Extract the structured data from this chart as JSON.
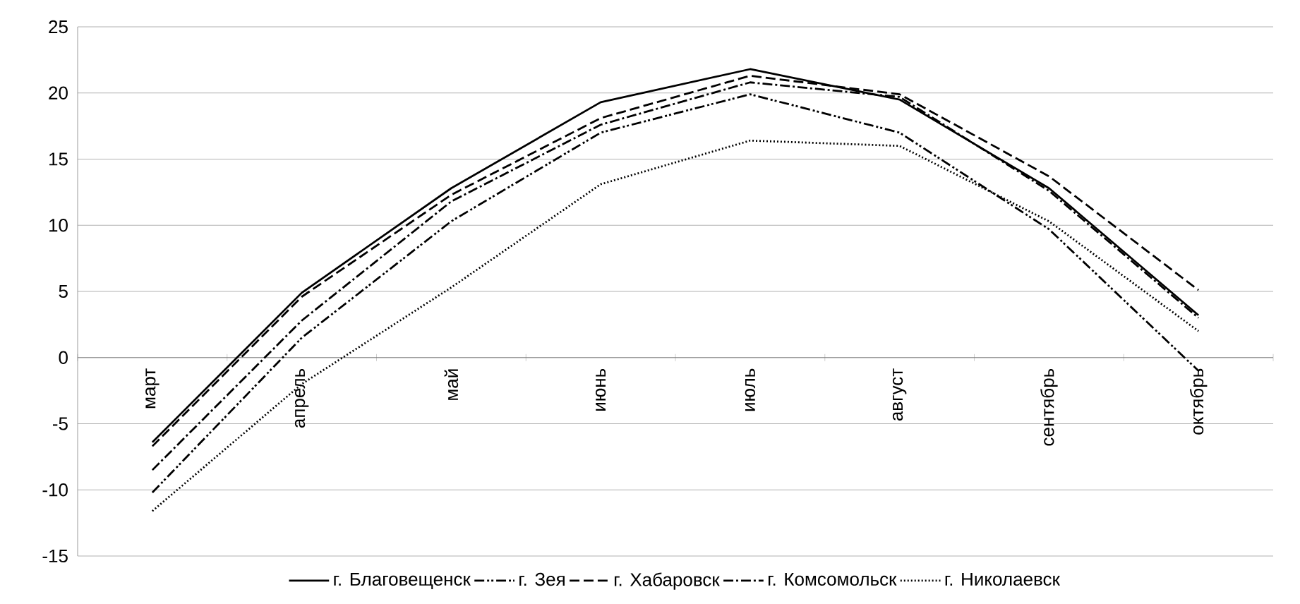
{
  "chart_data": {
    "type": "line",
    "categories": [
      "март",
      "апрель",
      "май",
      "июнь",
      "июль",
      "август",
      "сентябрь",
      "октябрь"
    ],
    "series": [
      {
        "name": "г. Благовещенск",
        "color": "#000000",
        "line_style": "solid",
        "values": [
          -6.4,
          4.9,
          12.8,
          19.3,
          21.8,
          19.5,
          12.8,
          3.2
        ]
      },
      {
        "name": "г. Зея",
        "color": "#000000",
        "line_style": "dashdotdot",
        "values": [
          -10.2,
          1.5,
          10.3,
          17.0,
          19.9,
          17.0,
          9.7,
          -1.0
        ]
      },
      {
        "name": "г. Хабаровск",
        "color": "#000000",
        "line_style": "dashed",
        "values": [
          -6.7,
          4.6,
          12.3,
          18.1,
          21.3,
          19.9,
          13.7,
          5.1
        ]
      },
      {
        "name": "г. Комсомольск",
        "color": "#000000",
        "line_style": "dashdot",
        "values": [
          -8.5,
          2.8,
          11.8,
          17.6,
          20.8,
          19.7,
          12.6,
          3.0
        ]
      },
      {
        "name": "г. Николаевск",
        "color": "#000000",
        "line_style": "dotted",
        "values": [
          -11.6,
          -2.0,
          5.3,
          13.1,
          16.4,
          16.0,
          10.3,
          2.0
        ]
      }
    ],
    "ylim": [
      -15,
      25
    ],
    "yticks": [
      -15,
      -10,
      -5,
      0,
      5,
      10,
      15,
      20,
      25
    ],
    "grid": "y",
    "legend": "bottom",
    "marker": "none"
  }
}
